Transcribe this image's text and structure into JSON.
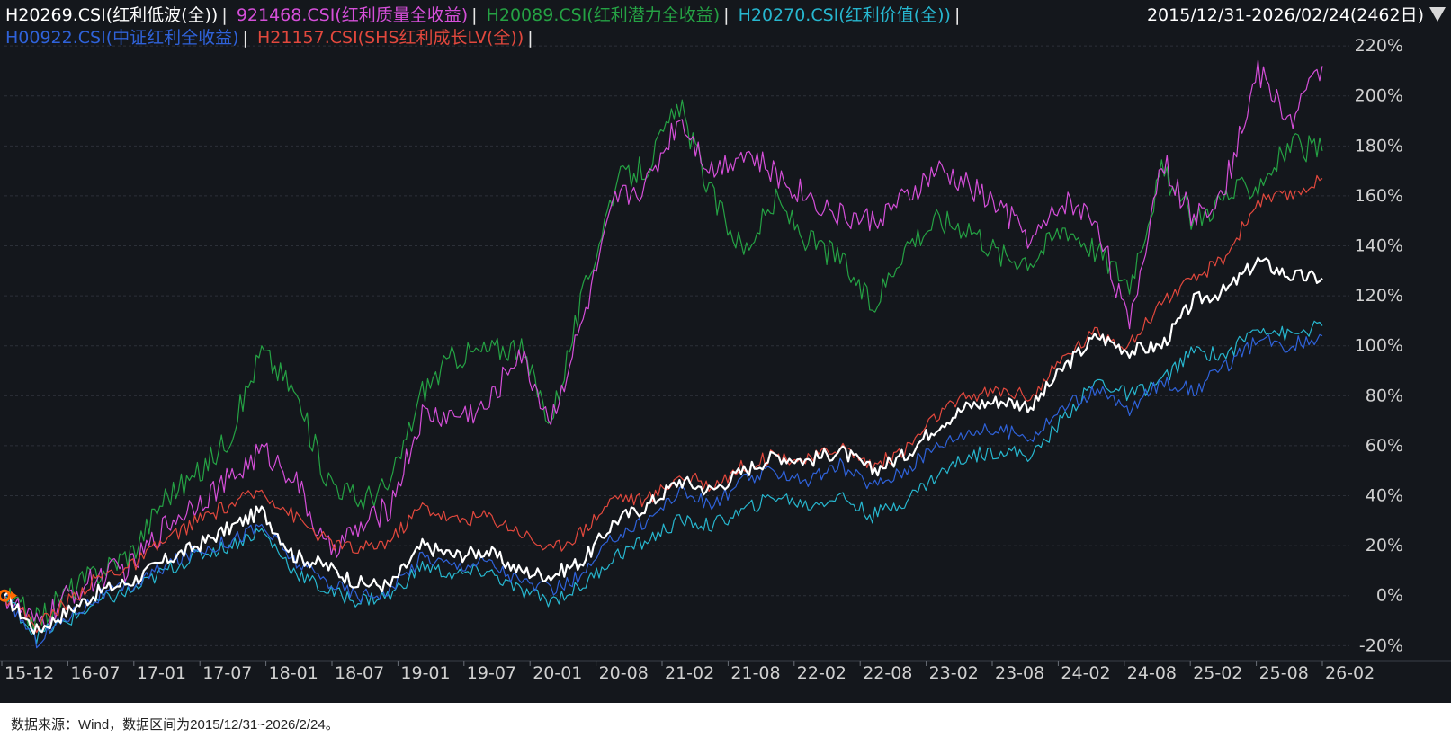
{
  "header": {
    "range_label": "2015/12/31-2026/02/24(2462日)"
  },
  "footer": {
    "source_note": "数据来源：Wind，数据区间为2015/12/31~2026/2/24。"
  },
  "colors": {
    "background": "#14171c",
    "grid": "#2c3038",
    "tick_text": "#d0d0d0",
    "start_marker": "#ff6a00"
  },
  "chart_data": {
    "type": "line",
    "yunit": "%",
    "ylim": [
      -26,
      224
    ],
    "yticks": [
      -20,
      0,
      20,
      40,
      60,
      80,
      100,
      120,
      140,
      160,
      180,
      200,
      220
    ],
    "xticks": [
      "15-12",
      "16-07",
      "17-01",
      "17-07",
      "18-01",
      "18-07",
      "19-01",
      "19-07",
      "20-01",
      "20-08",
      "21-02",
      "21-08",
      "22-02",
      "22-08",
      "23-02",
      "23-08",
      "24-02",
      "24-08",
      "25-02",
      "25-08",
      "26-02"
    ],
    "grid": true,
    "legend_position": "top-left",
    "x": [
      "2015-12",
      "2016-03",
      "2016-07",
      "2016-10",
      "2017-01",
      "2017-04",
      "2017-07",
      "2017-10",
      "2018-01",
      "2018-04",
      "2018-07",
      "2018-10",
      "2019-01",
      "2019-04",
      "2019-07",
      "2019-10",
      "2020-01",
      "2020-03",
      "2020-05",
      "2020-08",
      "2020-11",
      "2021-02",
      "2021-05",
      "2021-08",
      "2021-11",
      "2022-02",
      "2022-05",
      "2022-08",
      "2022-11",
      "2023-02",
      "2023-05",
      "2023-08",
      "2023-11",
      "2024-02",
      "2024-05",
      "2024-08",
      "2024-11",
      "2025-02",
      "2025-05",
      "2025-08",
      "2025-11",
      "2026-02"
    ],
    "series": [
      {
        "name": "H20269.CSI(红利低波(全))",
        "color": "#ffffff",
        "values": [
          0,
          -14,
          -6,
          2,
          6,
          14,
          20,
          27,
          34,
          16,
          12,
          5,
          4,
          20,
          16,
          18,
          10,
          8,
          14,
          30,
          36,
          46,
          42,
          50,
          56,
          54,
          58,
          50,
          56,
          68,
          76,
          78,
          76,
          92,
          104,
          98,
          100,
          118,
          122,
          134,
          128,
          127
        ]
      },
      {
        "name": "921468.CSI(红利质量全收益)",
        "color": "#d54fd9",
        "values": [
          0,
          -12,
          0,
          8,
          12,
          28,
          38,
          46,
          58,
          48,
          18,
          26,
          36,
          72,
          72,
          75,
          98,
          70,
          110,
          158,
          165,
          192,
          170,
          178,
          168,
          160,
          152,
          150,
          158,
          170,
          164,
          155,
          142,
          158,
          150,
          106,
          175,
          150,
          165,
          210,
          190,
          212
        ]
      },
      {
        "name": "H20089.CSI(红利潜力全收益)",
        "color": "#25a244",
        "values": [
          0,
          -10,
          2,
          10,
          18,
          40,
          48,
          64,
          98,
          82,
          48,
          38,
          44,
          82,
          96,
          98,
          100,
          70,
          120,
          165,
          172,
          196,
          160,
          138,
          158,
          142,
          135,
          115,
          140,
          150,
          148,
          136,
          135,
          148,
          138,
          125,
          170,
          150,
          160,
          165,
          180,
          178
        ]
      },
      {
        "name": "H20270.CSI(红利价值(全))",
        "color": "#27b7cf",
        "values": [
          0,
          -16,
          -10,
          -2,
          2,
          10,
          16,
          20,
          26,
          10,
          2,
          -2,
          0,
          12,
          8,
          10,
          2,
          -2,
          4,
          16,
          22,
          30,
          28,
          34,
          40,
          36,
          40,
          32,
          38,
          48,
          56,
          58,
          56,
          72,
          86,
          80,
          86,
          98,
          96,
          108,
          104,
          108
        ]
      },
      {
        "name": "H00922.CSI(中证红利全收益)",
        "color": "#2f62d9",
        "values": [
          0,
          -18,
          -8,
          0,
          4,
          12,
          18,
          22,
          28,
          14,
          6,
          0,
          2,
          16,
          12,
          14,
          6,
          2,
          8,
          24,
          30,
          42,
          36,
          46,
          50,
          46,
          52,
          44,
          50,
          60,
          66,
          66,
          64,
          76,
          82,
          74,
          86,
          82,
          92,
          102,
          100,
          104
        ]
      },
      {
        "name": "H21157.CSI(SHS红利成长LV(全))",
        "color": "#e2483d",
        "values": [
          0,
          -12,
          -2,
          8,
          12,
          22,
          30,
          36,
          42,
          32,
          22,
          18,
          22,
          36,
          30,
          32,
          26,
          18,
          26,
          40,
          38,
          48,
          44,
          52,
          56,
          54,
          60,
          52,
          58,
          72,
          80,
          82,
          80,
          96,
          106,
          100,
          118,
          126,
          136,
          158,
          160,
          167
        ]
      }
    ]
  }
}
